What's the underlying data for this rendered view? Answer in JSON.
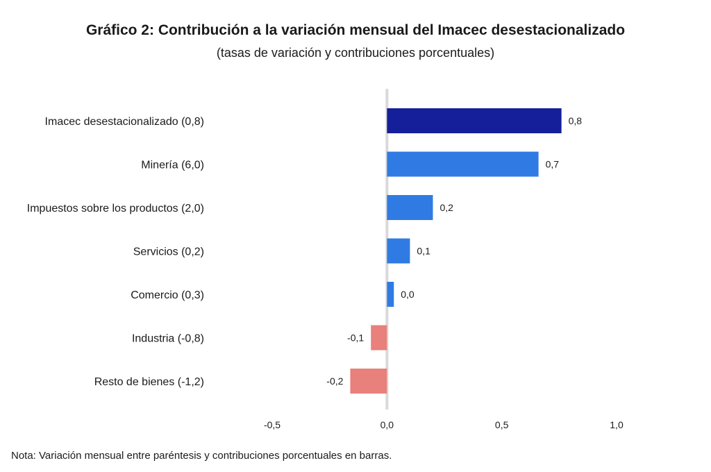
{
  "title": "Gráfico 2: Contribución a la variación mensual del Imacec desestacionalizado",
  "subtitle": "(tasas de variación y contribuciones porcentuales)",
  "note": "Nota: Variación mensual entre paréntesis y contribuciones porcentuales en barras.",
  "chart_data": {
    "type": "bar",
    "orientation": "horizontal",
    "categories": [
      "Imacec desestacionalizado (0,8)",
      "Minería (6,0)",
      "Impuestos sobre los productos (2,0)",
      "Servicios (0,2)",
      "Comercio (0,3)",
      "Industria (-0,8)",
      "Resto de bienes (-1,2)"
    ],
    "values": [
      0.76,
      0.66,
      0.2,
      0.1,
      0.03,
      -0.07,
      -0.16
    ],
    "value_labels": [
      "0,8",
      "0,7",
      "0,2",
      "0,1",
      "0,0",
      "-0,1",
      "-0,2"
    ],
    "colors": [
      "#141f99",
      "#2f7be3",
      "#2f7be3",
      "#2f7be3",
      "#2f7be3",
      "#e8807c",
      "#e8807c"
    ],
    "xlim": [
      -0.5,
      1.0
    ],
    "xticks": [
      -0.5,
      0.0,
      0.5,
      1.0
    ],
    "xtick_labels": [
      "-0,5",
      "0,0",
      "0,5",
      "1,0"
    ],
    "grid": false,
    "legend": "none"
  }
}
